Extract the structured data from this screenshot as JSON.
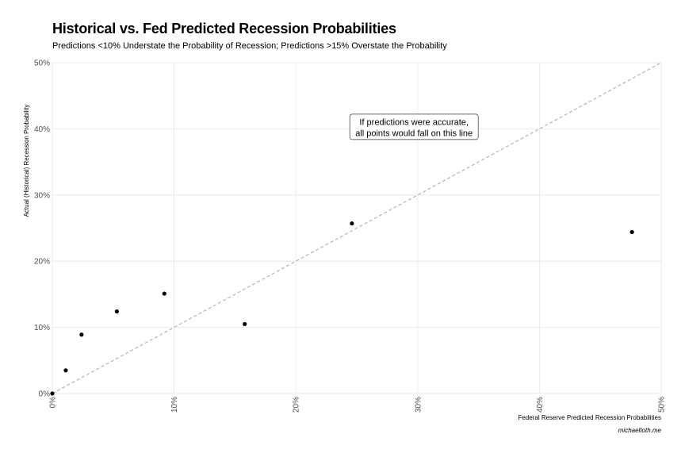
{
  "title": "Historical vs. Fed Predicted Recession Probabilities",
  "subtitle": "Predictions <10% Understate the Probability of Recession; Predictions >15% Overstate the Probability",
  "caption": "michaeltoth.me",
  "colors": {
    "grid": "#e5e5e5",
    "points": "#000000",
    "reference_line": "#b3b3b3",
    "tick_text": "#4d4d4d"
  },
  "chart_data": {
    "type": "scatter",
    "xlabel": "Federal Reserve Predicted Recession Probabilities",
    "ylabel": "Actual (Historical) Recession Probability",
    "xlim": [
      0,
      0.5
    ],
    "ylim": [
      0,
      0.5
    ],
    "x_ticks": [
      0,
      0.1,
      0.2,
      0.3,
      0.4,
      0.5
    ],
    "x_tick_labels": [
      "0%",
      "10%",
      "20%",
      "30%",
      "40%",
      "50%"
    ],
    "y_ticks": [
      0,
      0.1,
      0.2,
      0.3,
      0.4,
      0.5
    ],
    "y_tick_labels": [
      "0%",
      "10%",
      "20%",
      "30%",
      "40%",
      "50%"
    ],
    "grid": true,
    "points": [
      {
        "x": 0.0,
        "y": 0.0
      },
      {
        "x": 0.011,
        "y": 0.035
      },
      {
        "x": 0.024,
        "y": 0.089
      },
      {
        "x": 0.053,
        "y": 0.124
      },
      {
        "x": 0.092,
        "y": 0.151
      },
      {
        "x": 0.158,
        "y": 0.105
      },
      {
        "x": 0.246,
        "y": 0.257
      },
      {
        "x": 0.476,
        "y": 0.244
      }
    ],
    "reference_line": {
      "slope": 1,
      "intercept": 0,
      "style": "dashed"
    },
    "annotation": {
      "lines": [
        "If predictions were accurate,",
        "all points would fall on this line"
      ],
      "x": 0.297,
      "y": 0.403
    }
  }
}
